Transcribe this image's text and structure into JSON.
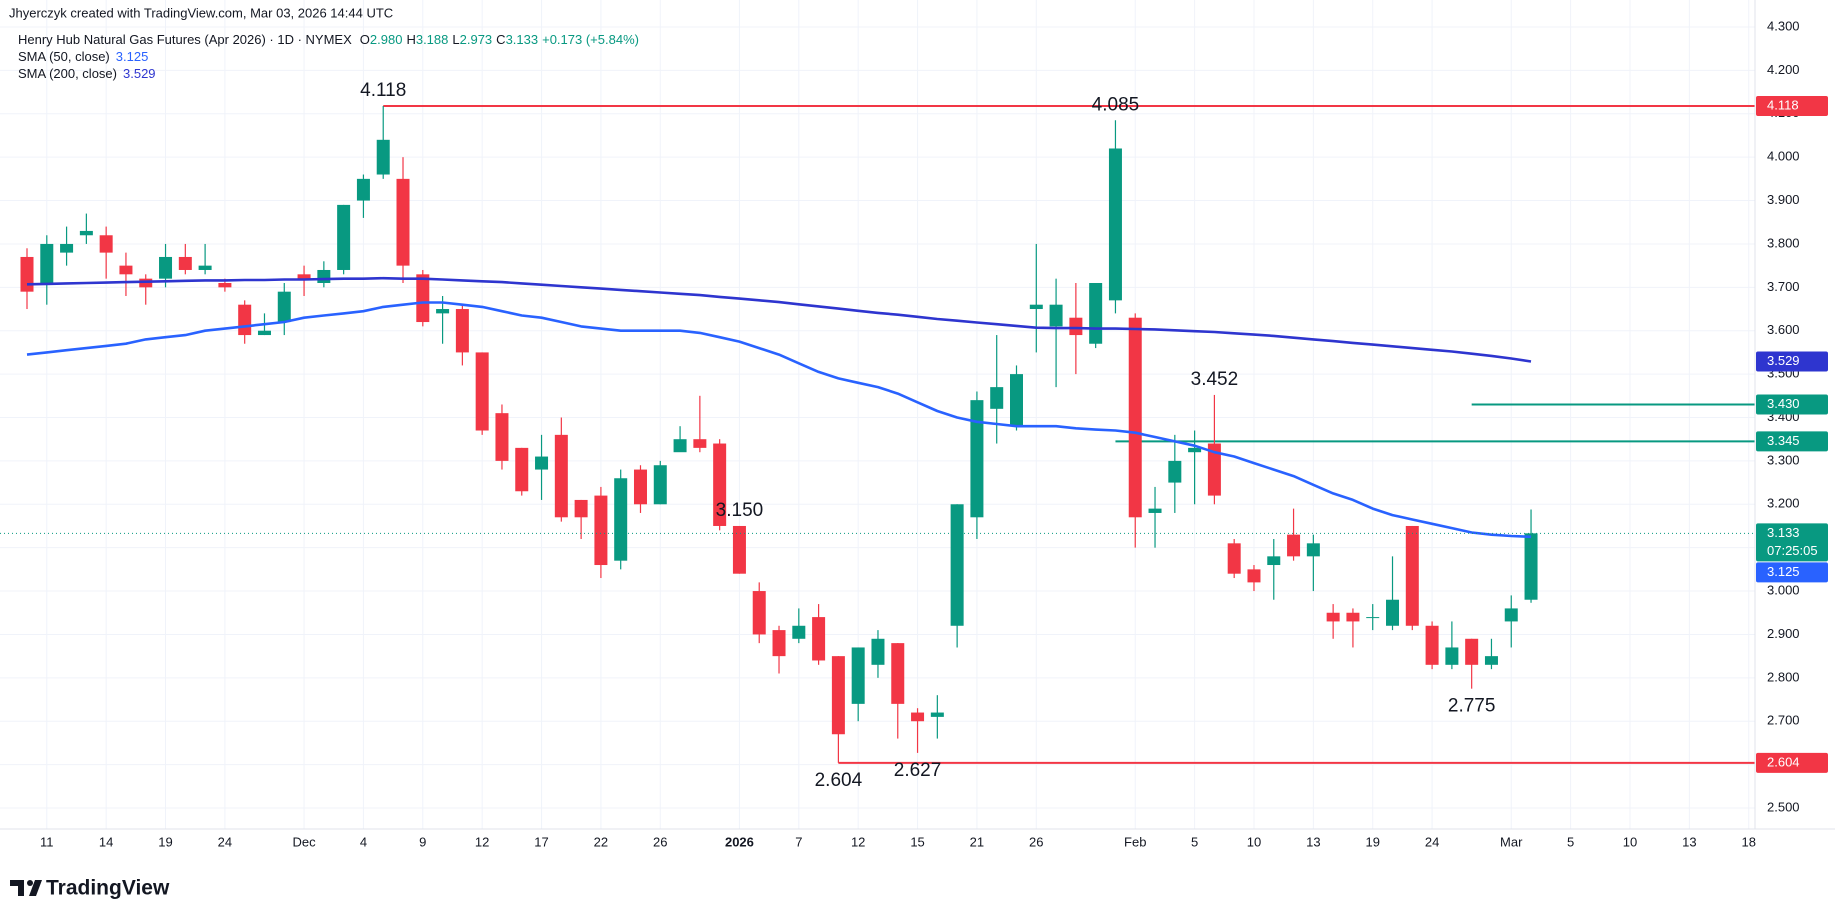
{
  "attribution": "Jhyerczyk created with TradingView.com, Mar 03, 2026 14:44 UTC",
  "branding": "TradingView",
  "chart_data": {
    "type": "candlestick",
    "title": "Henry Hub Natural Gas Futures (Apr 2026) · 1D · NYMEX",
    "ohlc": [
      {
        "key": "O",
        "label": "2.980"
      },
      {
        "key": "H",
        "label": "3.188"
      },
      {
        "key": "L",
        "label": "2.973"
      },
      {
        "key": "C",
        "label": "3.133"
      }
    ],
    "change": "+0.173 (+5.84%)",
    "up_color": "#089981",
    "down_color": "#f23645",
    "grid": true,
    "ylim": [
      2.5,
      4.3
    ],
    "yticks": [
      {
        "value": 2.5,
        "label": "2.500"
      },
      {
        "value": 2.6,
        "label": "2.600"
      },
      {
        "value": 2.7,
        "label": "2.700"
      },
      {
        "value": 2.8,
        "label": "2.800"
      },
      {
        "value": 2.9,
        "label": "2.900"
      },
      {
        "value": 3.0,
        "label": "3.000"
      },
      {
        "value": 3.1,
        "label": "3.100"
      },
      {
        "value": 3.2,
        "label": "3.200"
      },
      {
        "value": 3.3,
        "label": "3.300"
      },
      {
        "value": 3.4,
        "label": "3.400"
      },
      {
        "value": 3.5,
        "label": "3.500"
      },
      {
        "value": 3.6,
        "label": "3.600"
      },
      {
        "value": 3.7,
        "label": "3.700"
      },
      {
        "value": 3.8,
        "label": "3.800"
      },
      {
        "value": 3.9,
        "label": "3.900"
      },
      {
        "value": 4.0,
        "label": "4.000"
      },
      {
        "value": 4.1,
        "label": "4.100"
      },
      {
        "value": 4.2,
        "label": "4.200"
      },
      {
        "value": 4.3,
        "label": "4.300"
      }
    ],
    "categories": [
      null,
      "11",
      null,
      null,
      "14",
      null,
      null,
      "19",
      null,
      null,
      "24",
      null,
      null,
      null,
      "Dec",
      null,
      null,
      "4",
      null,
      null,
      "9",
      null,
      null,
      "12",
      null,
      null,
      "17",
      null,
      null,
      "22",
      null,
      null,
      "26",
      null,
      null,
      null,
      "2026",
      null,
      null,
      "7",
      null,
      null,
      "12",
      null,
      null,
      "15",
      null,
      null,
      "21",
      null,
      null,
      "26",
      null,
      null,
      null,
      null,
      "Feb",
      null,
      null,
      "5",
      null,
      null,
      "10",
      null,
      null,
      "13",
      null,
      null,
      "19",
      null,
      null,
      "24",
      null,
      null,
      null,
      "Mar",
      null,
      null,
      "5",
      null,
      null,
      "10",
      null,
      null,
      "13",
      null,
      null,
      "18"
    ],
    "open": [
      3.77,
      3.71,
      3.78,
      3.82,
      3.82,
      3.75,
      3.72,
      3.72,
      3.77,
      3.74,
      3.71,
      3.66,
      3.59,
      3.62,
      3.73,
      3.71,
      3.74,
      3.9,
      3.96,
      3.95,
      3.73,
      3.64,
      3.65,
      3.55,
      3.41,
      3.33,
      3.28,
      3.36,
      3.21,
      3.22,
      3.07,
      3.28,
      3.2,
      3.32,
      3.35,
      3.34,
      3.15,
      3.0,
      2.91,
      2.89,
      2.94,
      2.85,
      2.74,
      2.83,
      2.88,
      2.72,
      2.71,
      2.92,
      3.17,
      3.42,
      3.38,
      3.65,
      3.61,
      3.63,
      3.57,
      3.67,
      3.63,
      3.18,
      3.25,
      3.32,
      3.34,
      3.11,
      3.05,
      3.06,
      3.13,
      3.08,
      2.95,
      2.95,
      2.94,
      2.92,
      3.15,
      2.92,
      2.83,
      2.89,
      2.83,
      2.93,
      2.98,
      null,
      null,
      null,
      null,
      null,
      null,
      null,
      null,
      null,
      null,
      null
    ],
    "high": [
      3.79,
      3.82,
      3.84,
      3.87,
      3.84,
      3.78,
      3.73,
      3.8,
      3.8,
      3.8,
      3.72,
      3.67,
      3.64,
      3.71,
      3.75,
      3.76,
      3.89,
      3.96,
      4.118,
      4.0,
      3.74,
      3.68,
      3.66,
      3.55,
      3.43,
      3.33,
      3.36,
      3.4,
      3.21,
      3.24,
      3.28,
      3.29,
      3.3,
      3.38,
      3.45,
      3.35,
      3.15,
      3.02,
      2.92,
      2.96,
      2.97,
      2.85,
      2.87,
      2.91,
      2.88,
      2.73,
      2.76,
      3.2,
      3.46,
      3.59,
      3.52,
      3.8,
      3.72,
      3.71,
      3.71,
      4.085,
      3.64,
      3.24,
      3.36,
      3.37,
      3.452,
      3.12,
      3.06,
      3.12,
      3.19,
      3.13,
      2.97,
      2.96,
      2.97,
      3.08,
      3.15,
      2.93,
      2.93,
      2.89,
      2.89,
      2.99,
      3.188,
      null,
      null,
      null,
      null,
      null,
      null,
      null,
      null,
      null,
      null,
      null
    ],
    "low": [
      3.65,
      3.66,
      3.75,
      3.8,
      3.72,
      3.68,
      3.66,
      3.7,
      3.73,
      3.73,
      3.69,
      3.57,
      3.59,
      3.59,
      3.68,
      3.7,
      3.73,
      3.86,
      3.95,
      3.71,
      3.61,
      3.57,
      3.52,
      3.36,
      3.28,
      3.22,
      3.21,
      3.16,
      3.12,
      3.03,
      3.05,
      3.18,
      3.2,
      3.33,
      3.32,
      3.14,
      3.04,
      2.88,
      2.81,
      2.88,
      2.83,
      2.604,
      2.7,
      2.8,
      2.66,
      2.627,
      2.66,
      2.87,
      3.12,
      3.34,
      3.37,
      3.55,
      3.47,
      3.5,
      3.56,
      3.64,
      3.1,
      3.1,
      3.18,
      3.2,
      3.2,
      3.03,
      3.0,
      2.98,
      3.07,
      3.0,
      2.89,
      2.87,
      2.91,
      2.91,
      2.91,
      2.82,
      2.82,
      2.775,
      2.82,
      2.87,
      2.973,
      null,
      null,
      null,
      null,
      null,
      null,
      null,
      null,
      null,
      null,
      null
    ],
    "close": [
      3.69,
      3.8,
      3.8,
      3.83,
      3.78,
      3.73,
      3.7,
      3.77,
      3.74,
      3.75,
      3.7,
      3.59,
      3.6,
      3.69,
      3.72,
      3.74,
      3.89,
      3.95,
      4.04,
      3.75,
      3.62,
      3.65,
      3.55,
      3.37,
      3.3,
      3.23,
      3.31,
      3.17,
      3.17,
      3.06,
      3.26,
      3.2,
      3.29,
      3.35,
      3.33,
      3.15,
      3.04,
      2.9,
      2.85,
      2.92,
      2.84,
      2.67,
      2.87,
      2.89,
      2.74,
      2.7,
      2.72,
      3.2,
      3.44,
      3.47,
      3.5,
      3.66,
      3.66,
      3.59,
      3.71,
      4.02,
      3.17,
      3.19,
      3.3,
      3.33,
      3.22,
      3.04,
      3.02,
      3.08,
      3.08,
      3.11,
      2.93,
      2.93,
      2.94,
      2.98,
      2.92,
      2.83,
      2.87,
      2.83,
      2.85,
      2.96,
      3.133,
      null,
      null,
      null,
      null,
      null,
      null,
      null,
      null,
      null,
      null,
      null
    ],
    "series": [
      {
        "name": "SMA (50, close)",
        "legend_value": "3.125",
        "color": "#2962ff",
        "values": [
          3.545,
          3.55,
          3.555,
          3.56,
          3.565,
          3.57,
          3.58,
          3.585,
          3.59,
          3.6,
          3.605,
          3.61,
          3.615,
          3.62,
          3.63,
          3.635,
          3.64,
          3.645,
          3.655,
          3.66,
          3.665,
          3.665,
          3.66,
          3.655,
          3.645,
          3.635,
          3.63,
          3.62,
          3.61,
          3.605,
          3.6,
          3.6,
          3.6,
          3.6,
          3.595,
          3.585,
          3.575,
          3.56,
          3.545,
          3.525,
          3.505,
          3.49,
          3.48,
          3.47,
          3.455,
          3.435,
          3.415,
          3.4,
          3.39,
          3.385,
          3.38,
          3.38,
          3.38,
          3.375,
          3.372,
          3.37,
          3.365,
          3.355,
          3.345,
          3.335,
          3.32,
          3.31,
          3.295,
          3.28,
          3.265,
          3.245,
          3.225,
          3.21,
          3.19,
          3.175,
          3.165,
          3.155,
          3.145,
          3.135,
          3.13,
          3.127,
          3.125,
          null,
          null,
          null,
          null,
          null,
          null,
          null,
          null,
          null,
          null,
          null
        ]
      },
      {
        "name": "SMA (200, close)",
        "legend_value": "3.529",
        "color": "#2e35cf",
        "values": [
          3.707,
          3.708,
          3.709,
          3.71,
          3.711,
          3.712,
          3.713,
          3.714,
          3.715,
          3.716,
          3.716,
          3.717,
          3.717,
          3.718,
          3.718,
          3.719,
          3.72,
          3.72,
          3.721,
          3.72,
          3.72,
          3.718,
          3.716,
          3.714,
          3.712,
          3.709,
          3.706,
          3.703,
          3.7,
          3.697,
          3.694,
          3.691,
          3.688,
          3.685,
          3.682,
          3.678,
          3.674,
          3.67,
          3.666,
          3.661,
          3.656,
          3.651,
          3.646,
          3.641,
          3.637,
          3.632,
          3.627,
          3.623,
          3.619,
          3.615,
          3.611,
          3.607,
          3.606,
          3.606,
          3.605,
          3.605,
          3.604,
          3.603,
          3.601,
          3.599,
          3.597,
          3.594,
          3.591,
          3.588,
          3.584,
          3.58,
          3.576,
          3.572,
          3.568,
          3.564,
          3.56,
          3.556,
          3.552,
          3.547,
          3.542,
          3.536,
          3.529,
          null,
          null,
          null,
          null,
          null,
          null,
          null,
          null,
          null,
          null,
          null
        ]
      }
    ],
    "levels": [
      {
        "value": 4.118,
        "label": "4.118",
        "color": "#f23645"
      },
      {
        "value": 3.43,
        "label": "3.430",
        "color": "#089981"
      },
      {
        "value": 3.345,
        "label": "3.345",
        "color": "#089981"
      },
      {
        "value": 2.604,
        "label": "2.604",
        "color": "#f23645"
      }
    ],
    "price_tag": {
      "label": "3.133",
      "countdown": "07:25:05"
    },
    "annotations": [
      {
        "value": 4.118,
        "label": "4.118"
      },
      {
        "value": 4.085,
        "label": "4.085"
      },
      {
        "value": 3.452,
        "label": "3.452"
      },
      {
        "value": 3.15,
        "label": "3.150"
      },
      {
        "value": 2.775,
        "label": "2.775"
      },
      {
        "value": 2.627,
        "label": "2.627"
      },
      {
        "value": 2.604,
        "label": "2.604"
      }
    ]
  }
}
